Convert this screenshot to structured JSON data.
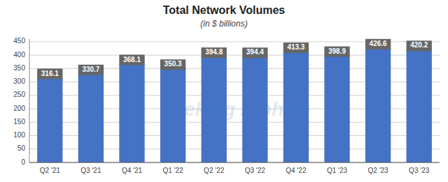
{
  "chart_data": {
    "type": "bar",
    "title": "Total Network Volumes",
    "subtitle": "(in $ billions)",
    "annotations": [
      "Seeking Alpha®"
    ],
    "categories": [
      "Q2 '21",
      "Q3 '21",
      "Q4 '21",
      "Q1 '22",
      "Q2 '22",
      "Q3 '22",
      "Q4 '22",
      "Q1 '23",
      "Q2 '23",
      "Q3 '23"
    ],
    "values": [
      316.1,
      330.7,
      368.1,
      350.3,
      394.8,
      394.4,
      413.3,
      398.9,
      426.6,
      420.2
    ],
    "color": "#4472C4",
    "ylim": [
      0,
      460
    ],
    "yticks": [
      0,
      50,
      100,
      150,
      200,
      250,
      300,
      350,
      400,
      450
    ],
    "grid": true,
    "data_labels": true
  }
}
